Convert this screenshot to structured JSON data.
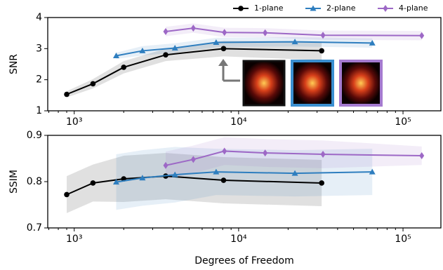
{
  "chart_data": [
    {
      "type": "line",
      "y_label": "SNR",
      "legend": "top-right",
      "xlim": [
        690,
        170000
      ],
      "xscale": "log",
      "xticks": [
        {
          "value": 1000,
          "label": "10³"
        },
        {
          "value": 10000,
          "label": "10⁴"
        },
        {
          "value": 100000,
          "label": "10⁵"
        }
      ],
      "ylim": [
        1,
        4
      ],
      "yticks": [
        1,
        2,
        3,
        4
      ],
      "series": [
        {
          "name": "1-plane",
          "color": "#000000",
          "marker": "circle",
          "x": [
            900,
            1300,
            2000,
            3600,
            8100,
            32000
          ],
          "values": [
            1.53,
            1.87,
            2.4,
            2.8,
            3.0,
            2.93
          ],
          "errors": [
            0.1,
            0.15,
            0.2,
            0.2,
            0.25,
            0.3
          ]
        },
        {
          "name": "2-plane",
          "color": "#2e7ebf",
          "marker": "triangle",
          "x": [
            1800,
            2600,
            4100,
            7300,
            22000,
            65000
          ],
          "values": [
            2.77,
            2.93,
            3.02,
            3.2,
            3.22,
            3.18
          ],
          "errors": [
            0.1,
            0.15,
            0.15,
            0.15,
            0.15,
            0.15
          ]
        },
        {
          "name": "4-plane",
          "color": "#9d68c6",
          "marker": "diamond",
          "x": [
            3600,
            5300,
            8200,
            14500,
            32600,
            130000
          ],
          "values": [
            3.55,
            3.66,
            3.52,
            3.51,
            3.43,
            3.42
          ],
          "errors": [
            0.15,
            0.15,
            0.15,
            0.15,
            0.15,
            0.15
          ]
        }
      ]
    },
    {
      "type": "line",
      "y_label": "SSIM",
      "x_label": "Degrees of Freedom",
      "xlim": [
        690,
        170000
      ],
      "xscale": "log",
      "xticks": [
        {
          "value": 1000,
          "label": "10³"
        },
        {
          "value": 10000,
          "label": "10⁴"
        },
        {
          "value": 100000,
          "label": "10⁵"
        }
      ],
      "ylim": [
        0.7,
        0.9
      ],
      "yticks": [
        0.7,
        0.8,
        0.9
      ],
      "series": [
        {
          "color": "#000000",
          "marker": "circle",
          "x": [
            900,
            1300,
            2000,
            3600,
            8100,
            32000
          ],
          "values": [
            0.772,
            0.797,
            0.806,
            0.812,
            0.803,
            0.797
          ],
          "errors": [
            0.04,
            0.04,
            0.05,
            0.05,
            0.05,
            0.05
          ]
        },
        {
          "color": "#2e7ebf",
          "marker": "triangle",
          "x": [
            1800,
            2600,
            4100,
            7300,
            22000,
            65000
          ],
          "values": [
            0.799,
            0.808,
            0.815,
            0.821,
            0.818,
            0.821
          ],
          "errors": [
            0.06,
            0.06,
            0.06,
            0.05,
            0.05,
            0.05
          ]
        },
        {
          "color": "#9d68c6",
          "marker": "diamond",
          "x": [
            3600,
            5300,
            8200,
            14500,
            32600,
            130000
          ],
          "values": [
            0.835,
            0.848,
            0.866,
            0.862,
            0.859,
            0.856
          ],
          "errors": [
            0.03,
            0.03,
            0.03,
            0.03,
            0.03,
            0.02
          ]
        }
      ]
    }
  ]
}
